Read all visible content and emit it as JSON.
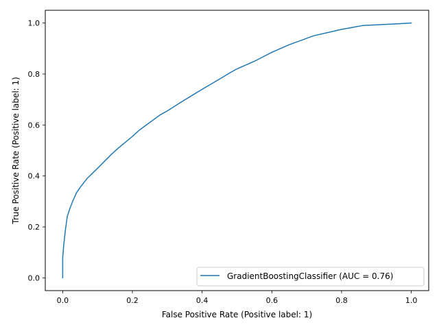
{
  "chart_data": {
    "type": "line",
    "title": "",
    "xlabel": "False Positive Rate (Positive label: 1)",
    "ylabel": "True Positive Rate (Positive label: 1)",
    "xlim": [
      -0.05,
      1.05
    ],
    "ylim": [
      -0.05,
      1.05
    ],
    "xticks": [
      0.0,
      0.2,
      0.4,
      0.6,
      0.8,
      1.0
    ],
    "xtick_labels": [
      "0.0",
      "0.2",
      "0.4",
      "0.6",
      "0.8",
      "1.0"
    ],
    "yticks": [
      0.0,
      0.2,
      0.4,
      0.6,
      0.8,
      1.0
    ],
    "ytick_labels": [
      "0.0",
      "0.2",
      "0.4",
      "0.6",
      "0.8",
      "1.0"
    ],
    "grid": false,
    "legend": {
      "position": "lower-right",
      "entries": [
        "GradientBoostingClassifier (AUC = 0.76)"
      ]
    },
    "series": [
      {
        "name": "GradientBoostingClassifier (AUC = 0.76)",
        "color": "#1f77b4",
        "x": [
          0.0,
          0.0,
          0.003,
          0.008,
          0.013,
          0.02,
          0.03,
          0.04,
          0.05,
          0.07,
          0.1,
          0.14,
          0.16,
          0.2,
          0.22,
          0.25,
          0.28,
          0.3,
          0.34,
          0.37,
          0.4,
          0.45,
          0.48,
          0.5,
          0.55,
          0.6,
          0.65,
          0.72,
          0.8,
          0.86,
          0.9,
          0.96,
          1.0
        ],
        "y": [
          0.0,
          0.08,
          0.13,
          0.19,
          0.24,
          0.27,
          0.305,
          0.335,
          0.355,
          0.39,
          0.43,
          0.485,
          0.51,
          0.555,
          0.58,
          0.61,
          0.64,
          0.655,
          0.69,
          0.715,
          0.74,
          0.78,
          0.805,
          0.82,
          0.85,
          0.885,
          0.915,
          0.95,
          0.975,
          0.99,
          0.993,
          0.997,
          1.0
        ]
      }
    ]
  }
}
